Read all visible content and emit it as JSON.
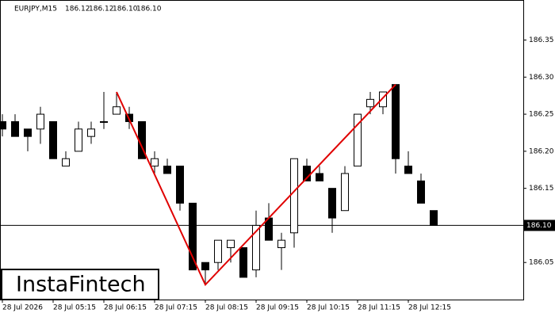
{
  "chart_data": {
    "type": "candlestick",
    "title": "EURJPY,M15",
    "header_values": [
      "186.12",
      "186.12",
      "186.10",
      "186.10"
    ],
    "categories": [
      "28 Jul 2026",
      null,
      null,
      null,
      "28 Jul 05:15",
      null,
      null,
      null,
      "28 Jul 06:15",
      null,
      null,
      null,
      "28 Jul 07:15",
      null,
      null,
      null,
      "28 Jul 08:15",
      null,
      null,
      null,
      "28 Jul 09:15",
      null,
      null,
      null,
      "28 Jul 10:15",
      null,
      null,
      null,
      "28 Jul 11:15",
      null,
      null,
      null,
      "28 Jul 12:15",
      null,
      null
    ],
    "open": [
      186.24,
      186.24,
      186.23,
      186.23,
      186.24,
      186.18,
      186.2,
      186.22,
      186.24,
      186.25,
      186.25,
      186.24,
      186.18,
      186.18,
      186.18,
      186.13,
      186.05,
      186.05,
      186.07,
      186.07,
      186.04,
      186.11,
      186.07,
      186.09,
      186.18,
      186.17,
      186.15,
      186.12,
      186.18,
      186.26,
      186.26,
      186.29,
      186.18,
      186.16,
      186.12
    ],
    "high": [
      186.25,
      186.25,
      186.23,
      186.26,
      186.24,
      186.2,
      186.24,
      186.24,
      186.28,
      186.28,
      186.26,
      186.24,
      186.2,
      186.19,
      186.18,
      186.13,
      186.05,
      186.08,
      186.08,
      186.07,
      186.12,
      186.13,
      186.09,
      186.19,
      186.19,
      186.18,
      186.15,
      186.18,
      186.25,
      186.28,
      186.28,
      186.29,
      186.2,
      186.17,
      186.12
    ],
    "low": [
      186.22,
      186.22,
      186.2,
      186.21,
      186.19,
      186.18,
      186.2,
      186.21,
      186.23,
      186.25,
      186.23,
      186.19,
      186.17,
      186.17,
      186.12,
      186.04,
      186.02,
      186.04,
      186.05,
      186.03,
      186.03,
      186.08,
      186.04,
      186.07,
      186.16,
      186.16,
      186.09,
      186.12,
      186.18,
      186.25,
      186.25,
      186.17,
      186.17,
      186.13,
      186.1
    ],
    "close": [
      186.23,
      186.22,
      186.22,
      186.25,
      186.19,
      186.19,
      186.23,
      186.23,
      186.24,
      186.26,
      186.24,
      186.19,
      186.19,
      186.17,
      186.13,
      186.04,
      186.04,
      186.08,
      186.08,
      186.03,
      186.1,
      186.08,
      186.08,
      186.19,
      186.16,
      186.16,
      186.11,
      186.17,
      186.25,
      186.27,
      186.28,
      186.19,
      186.17,
      186.13,
      186.1
    ],
    "up_color": "#ffffff",
    "down_color": "#000000",
    "ylim": [
      186.0,
      186.404
    ],
    "yticks": [
      186.05,
      {
        "value": 186.1,
        "label": "186.10"
      },
      186.15,
      {
        "value": 186.2,
        "label": "186.20"
      },
      186.25,
      {
        "value": 186.3,
        "label": "186.30"
      },
      186.35
    ],
    "last_price": {
      "value": 186.1,
      "label": "186.10"
    },
    "pattern_line": {
      "color": "#e00000",
      "x": [
        9,
        16,
        31
      ],
      "values": [
        186.28,
        186.02,
        186.29
      ]
    },
    "logo": "InstaFintech"
  }
}
